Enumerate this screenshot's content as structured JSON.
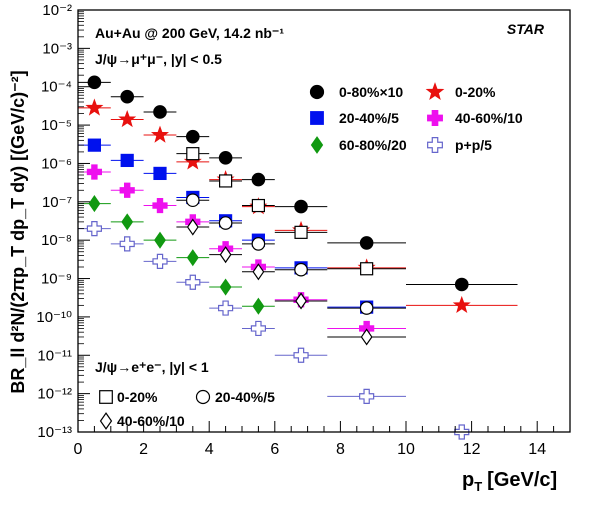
{
  "chart_data": {
    "type": "scatter",
    "title": "",
    "xlabel_main": "p",
    "xlabel_sub": "T",
    "xlabel_unit": "[GeV/c]",
    "ylabel": "BR_ll d²N/(2πp_T dp_T dy) [(GeV/c)⁻²]",
    "xlim": [
      0,
      15
    ],
    "ylim": [
      1e-13,
      0.01
    ],
    "yscale": "log",
    "grid": false,
    "x_ticks": [
      "0",
      "2",
      "4",
      "6",
      "8",
      "10",
      "12",
      "14"
    ],
    "y_ticks": [
      "10⁻¹³",
      "10⁻¹²",
      "10⁻¹¹",
      "10⁻¹⁰",
      "10⁻⁹",
      "10⁻⁸",
      "10⁻⁷",
      "10⁻⁶",
      "10⁻⁵",
      "10⁻⁴",
      "10⁻³",
      "10⁻²"
    ],
    "annotations": {
      "system": "Au+Au @ 200 GeV, 14.2 nb⁻¹",
      "dimuon_channel": "J/ψ→μ⁺μ⁻, |y| < 0.5",
      "dielectron_channel": "J/ψ→e⁺e⁻, |y| < 1",
      "experiment": "STAR"
    },
    "series": [
      {
        "name": "0-80%×10",
        "channel": "mumu",
        "marker": "circle-filled",
        "color": "#000000",
        "x": [
          0.5,
          1.5,
          2.5,
          3.5,
          4.5,
          5.5,
          6.8,
          8.8,
          11.7
        ],
        "xerr": [
          0.5,
          0.5,
          0.5,
          0.5,
          0.5,
          0.5,
          0.8,
          1.2,
          1.7
        ],
        "y": [
          0.00013,
          5.5e-05,
          2.2e-05,
          5e-06,
          1.4e-06,
          3.8e-07,
          7.5e-08,
          8.5e-09,
          7e-10
        ]
      },
      {
        "name": "0-20%",
        "channel": "mumu",
        "marker": "star-filled",
        "color": "#e8110f",
        "x": [
          0.5,
          1.5,
          2.5,
          3.5,
          4.5,
          5.5,
          6.8,
          8.8,
          11.7
        ],
        "xerr": [
          0.5,
          0.5,
          0.5,
          0.5,
          0.5,
          0.5,
          0.8,
          1.2,
          1.7
        ],
        "y": [
          2.8e-05,
          1.4e-05,
          5.5e-06,
          1.1e-06,
          3.8e-07,
          7.5e-08,
          1.8e-08,
          1.9e-09,
          2e-10
        ]
      },
      {
        "name": "20-40%/5",
        "channel": "mumu",
        "marker": "square-filled",
        "color": "#0011ee",
        "x": [
          0.5,
          1.5,
          2.5,
          3.5,
          4.5,
          5.5,
          6.8,
          8.8
        ],
        "xerr": [
          0.5,
          0.5,
          0.5,
          0.5,
          0.5,
          0.5,
          0.8,
          1.2
        ],
        "y": [
          3e-06,
          1.2e-06,
          5.5e-07,
          1.3e-07,
          3.2e-08,
          1e-08,
          1.9e-09,
          1.8e-10
        ]
      },
      {
        "name": "40-60%/10",
        "channel": "mumu",
        "marker": "cross-filled",
        "color": "#ee10ee",
        "x": [
          0.5,
          1.5,
          2.5,
          3.5,
          4.5,
          5.5,
          6.8,
          8.8
        ],
        "xerr": [
          0.5,
          0.5,
          0.5,
          0.5,
          0.5,
          0.5,
          0.8,
          1.2
        ],
        "y": [
          6e-07,
          2e-07,
          8e-08,
          3e-08,
          6e-09,
          2e-09,
          2.8e-10,
          5e-11
        ]
      },
      {
        "name": "60-80%/20",
        "channel": "mumu",
        "marker": "diamond-filled",
        "color": "#119911",
        "x": [
          0.5,
          1.5,
          2.5,
          3.5,
          4.5,
          5.5
        ],
        "xerr": [
          0.5,
          0.5,
          0.5,
          0.5,
          0.5,
          0.5
        ],
        "y": [
          9e-08,
          3e-08,
          1e-08,
          3.5e-09,
          6e-10,
          1.9e-10
        ]
      },
      {
        "name": "p+p/5",
        "channel": "pp",
        "marker": "cross-open",
        "color": "#6666cc",
        "x": [
          0.5,
          1.5,
          2.5,
          3.5,
          4.5,
          5.5,
          6.8,
          8.8,
          11.7
        ],
        "xerr": [
          0.5,
          0.5,
          0.5,
          0.5,
          0.5,
          0.5,
          0.8,
          1.2,
          1.7
        ],
        "y": [
          2e-08,
          8e-09,
          2.8e-09,
          8e-10,
          1.7e-10,
          5e-11,
          1e-11,
          8.5e-13,
          1e-13
        ]
      },
      {
        "name": "0-20%",
        "channel": "ee",
        "marker": "square-open",
        "color": "#000000",
        "x": [
          3.5,
          4.5,
          5.5,
          6.8,
          8.8
        ],
        "xerr": [
          0.5,
          0.5,
          0.5,
          0.8,
          1.2
        ],
        "y": [
          1.8e-06,
          3.5e-07,
          8e-08,
          1.6e-08,
          1.8e-09
        ]
      },
      {
        "name": "20-40%/5",
        "channel": "ee",
        "marker": "circle-open",
        "color": "#000000",
        "x": [
          3.5,
          4.5,
          5.5,
          6.8,
          8.8
        ],
        "xerr": [
          0.5,
          0.5,
          0.5,
          0.8,
          1.2
        ],
        "y": [
          1.1e-07,
          2.8e-08,
          8e-09,
          1.7e-09,
          1.7e-10
        ]
      },
      {
        "name": "40-60%/10",
        "channel": "ee",
        "marker": "diamond-open",
        "color": "#000000",
        "x": [
          3.5,
          4.5,
          5.5,
          6.8,
          8.8
        ],
        "xerr": [
          0.5,
          0.5,
          0.5,
          0.8,
          1.2
        ],
        "y": [
          2.2e-08,
          4.2e-09,
          1.5e-09,
          2.6e-10,
          3e-11
        ]
      }
    ]
  },
  "legend": {
    "mumu": [
      {
        "label": "0-80%×10",
        "marker": "circle-filled",
        "color": "#000000"
      },
      {
        "label": "0-20%",
        "marker": "star-filled",
        "color": "#e8110f"
      },
      {
        "label": "20-40%/5",
        "marker": "square-filled",
        "color": "#0011ee"
      },
      {
        "label": "40-60%/10",
        "marker": "cross-filled",
        "color": "#ee10ee"
      },
      {
        "label": "60-80%/20",
        "marker": "diamond-filled",
        "color": "#119911"
      },
      {
        "label": "p+p/5",
        "marker": "cross-open",
        "color": "#6666cc"
      }
    ],
    "ee": [
      {
        "label": "0-20%",
        "marker": "square-open",
        "color": "#000000"
      },
      {
        "label": "20-40%/5",
        "marker": "circle-open",
        "color": "#000000"
      },
      {
        "label": "40-60%/10",
        "marker": "diamond-open",
        "color": "#000000"
      }
    ]
  }
}
